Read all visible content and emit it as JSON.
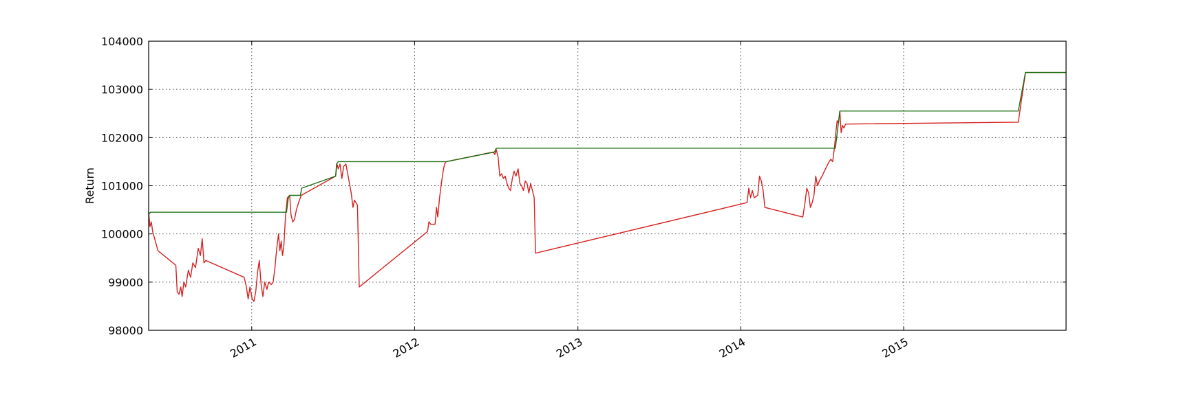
{
  "chart_data": {
    "type": "line",
    "title": "",
    "xlabel": "",
    "ylabel": "Return",
    "xlim": [
      "2010-05-15",
      "2015-12-31"
    ],
    "ylim": [
      98000,
      104000
    ],
    "grid": true,
    "x_ticks": [
      "2011-01-01",
      "2012-01-01",
      "2013-01-01",
      "2014-01-01",
      "2015-01-01"
    ],
    "x_tick_labels": [
      "2011",
      "2012",
      "2013",
      "2014",
      "2015"
    ],
    "y_ticks": [
      98000,
      99000,
      100000,
      101000,
      102000,
      103000,
      104000
    ],
    "y_tick_labels": [
      "98000",
      "99000",
      "100000",
      "101000",
      "102000",
      "103000",
      "104000"
    ],
    "series": [
      {
        "color": "#d62020",
        "points": [
          [
            "2010-05-15",
            100450
          ],
          [
            "2010-05-18",
            100150
          ],
          [
            "2010-05-21",
            100250
          ],
          [
            "2010-05-24",
            100050
          ],
          [
            "2010-06-05",
            99650
          ],
          [
            "2010-07-15",
            99350
          ],
          [
            "2010-07-18",
            98800
          ],
          [
            "2010-07-22",
            98750
          ],
          [
            "2010-07-26",
            98900
          ],
          [
            "2010-07-29",
            98700
          ],
          [
            "2010-08-02",
            99000
          ],
          [
            "2010-08-06",
            98900
          ],
          [
            "2010-08-12",
            99250
          ],
          [
            "2010-08-17",
            99100
          ],
          [
            "2010-08-22",
            99400
          ],
          [
            "2010-08-28",
            99300
          ],
          [
            "2010-09-03",
            99700
          ],
          [
            "2010-09-08",
            99550
          ],
          [
            "2010-09-12",
            99900
          ],
          [
            "2010-09-16",
            99400
          ],
          [
            "2010-09-20",
            99450
          ],
          [
            "2010-12-15",
            99100
          ],
          [
            "2010-12-20",
            98900
          ],
          [
            "2010-12-24",
            98650
          ],
          [
            "2010-12-28",
            98900
          ],
          [
            "2011-01-02",
            98650
          ],
          [
            "2011-01-06",
            98600
          ],
          [
            "2011-01-10",
            98800
          ],
          [
            "2011-01-14",
            99200
          ],
          [
            "2011-01-18",
            99450
          ],
          [
            "2011-01-22",
            98950
          ],
          [
            "2011-01-26",
            98700
          ],
          [
            "2011-01-30",
            99000
          ],
          [
            "2011-02-04",
            98850
          ],
          [
            "2011-02-08",
            99000
          ],
          [
            "2011-02-14",
            98950
          ],
          [
            "2011-02-18",
            99000
          ],
          [
            "2011-02-22",
            99300
          ],
          [
            "2011-02-26",
            99700
          ],
          [
            "2011-03-02",
            100000
          ],
          [
            "2011-03-05",
            99650
          ],
          [
            "2011-03-08",
            99850
          ],
          [
            "2011-03-11",
            99550
          ],
          [
            "2011-03-14",
            99750
          ],
          [
            "2011-03-18",
            100400
          ],
          [
            "2011-03-22",
            100750
          ],
          [
            "2011-03-27",
            100800
          ],
          [
            "2011-03-30",
            100400
          ],
          [
            "2011-04-03",
            100250
          ],
          [
            "2011-04-07",
            100300
          ],
          [
            "2011-04-11",
            100500
          ],
          [
            "2011-04-16",
            100650
          ],
          [
            "2011-04-22",
            100800
          ],
          [
            "2011-07-08",
            101200
          ],
          [
            "2011-07-11",
            101450
          ],
          [
            "2011-07-14",
            101350
          ],
          [
            "2011-07-18",
            101450
          ],
          [
            "2011-07-22",
            101150
          ],
          [
            "2011-07-26",
            101400
          ],
          [
            "2011-07-31",
            101450
          ],
          [
            "2011-08-06",
            101150
          ],
          [
            "2011-08-12",
            100850
          ],
          [
            "2011-08-16",
            100550
          ],
          [
            "2011-08-19",
            100700
          ],
          [
            "2011-08-26",
            100600
          ],
          [
            "2011-08-30",
            98900
          ],
          [
            "2012-01-30",
            100050
          ],
          [
            "2012-02-02",
            100250
          ],
          [
            "2012-02-06",
            100200
          ],
          [
            "2012-02-16",
            100200
          ],
          [
            "2012-02-19",
            100550
          ],
          [
            "2012-02-22",
            100350
          ],
          [
            "2012-02-26",
            100750
          ],
          [
            "2012-03-01",
            101050
          ],
          [
            "2012-03-05",
            101300
          ],
          [
            "2012-03-08",
            101450
          ],
          [
            "2012-03-12",
            101500
          ],
          [
            "2012-06-25",
            101700
          ],
          [
            "2012-06-29",
            101650
          ],
          [
            "2012-07-02",
            101750
          ],
          [
            "2012-07-06",
            101600
          ],
          [
            "2012-07-10",
            101200
          ],
          [
            "2012-07-14",
            101250
          ],
          [
            "2012-07-18",
            101150
          ],
          [
            "2012-07-22",
            101200
          ],
          [
            "2012-07-26",
            101050
          ],
          [
            "2012-07-30",
            100950
          ],
          [
            "2012-08-03",
            100900
          ],
          [
            "2012-08-07",
            101150
          ],
          [
            "2012-08-11",
            101300
          ],
          [
            "2012-08-15",
            101200
          ],
          [
            "2012-08-20",
            101350
          ],
          [
            "2012-08-24",
            101050
          ],
          [
            "2012-08-28",
            101000
          ],
          [
            "2012-09-01",
            100900
          ],
          [
            "2012-09-05",
            101100
          ],
          [
            "2012-09-09",
            101050
          ],
          [
            "2012-09-13",
            100850
          ],
          [
            "2012-09-17",
            101050
          ],
          [
            "2012-09-21",
            100900
          ],
          [
            "2012-09-25",
            100750
          ],
          [
            "2012-09-28",
            99600
          ],
          [
            "2014-01-15",
            100650
          ],
          [
            "2014-01-19",
            100950
          ],
          [
            "2014-01-23",
            100750
          ],
          [
            "2014-01-27",
            100900
          ],
          [
            "2014-01-31",
            100750
          ],
          [
            "2014-02-08",
            100800
          ],
          [
            "2014-02-12",
            101200
          ],
          [
            "2014-02-16",
            101100
          ],
          [
            "2014-02-20",
            100900
          ],
          [
            "2014-02-24",
            100550
          ],
          [
            "2014-05-20",
            100350
          ],
          [
            "2014-05-25",
            100650
          ],
          [
            "2014-05-29",
            100950
          ],
          [
            "2014-06-02",
            100850
          ],
          [
            "2014-06-06",
            100550
          ],
          [
            "2014-06-10",
            100650
          ],
          [
            "2014-06-14",
            100800
          ],
          [
            "2014-06-18",
            101200
          ],
          [
            "2014-06-22",
            101000
          ],
          [
            "2014-06-26",
            101100
          ],
          [
            "2014-07-02",
            101200
          ],
          [
            "2014-07-10",
            101350
          ],
          [
            "2014-07-18",
            101500
          ],
          [
            "2014-07-22",
            101550
          ],
          [
            "2014-07-26",
            101500
          ],
          [
            "2014-07-30",
            101800
          ],
          [
            "2014-08-02",
            102100
          ],
          [
            "2014-08-05",
            102350
          ],
          [
            "2014-08-08",
            102300
          ],
          [
            "2014-08-11",
            102550
          ],
          [
            "2014-08-14",
            102100
          ],
          [
            "2014-08-17",
            102250
          ],
          [
            "2014-08-20",
            102200
          ],
          [
            "2014-08-24",
            102280
          ],
          [
            "2015-09-15",
            102320
          ],
          [
            "2015-10-01",
            103350
          ],
          [
            "2015-12-31",
            103350
          ]
        ]
      },
      {
        "color": "#1a6e10",
        "points": [
          [
            "2010-05-15",
            100400
          ],
          [
            "2010-05-19",
            100450
          ],
          [
            "2011-03-20",
            100450
          ],
          [
            "2011-03-24",
            100750
          ],
          [
            "2011-03-28",
            100800
          ],
          [
            "2011-04-20",
            100800
          ],
          [
            "2011-04-23",
            100950
          ],
          [
            "2011-07-08",
            101200
          ],
          [
            "2011-07-10",
            101450
          ],
          [
            "2011-07-14",
            101500
          ],
          [
            "2012-03-12",
            101500
          ],
          [
            "2012-06-28",
            101700
          ],
          [
            "2012-07-02",
            101780
          ],
          [
            "2014-08-01",
            101780
          ],
          [
            "2014-08-11",
            102550
          ],
          [
            "2015-09-15",
            102550
          ],
          [
            "2015-10-01",
            103350
          ],
          [
            "2015-12-31",
            103350
          ]
        ]
      }
    ]
  }
}
